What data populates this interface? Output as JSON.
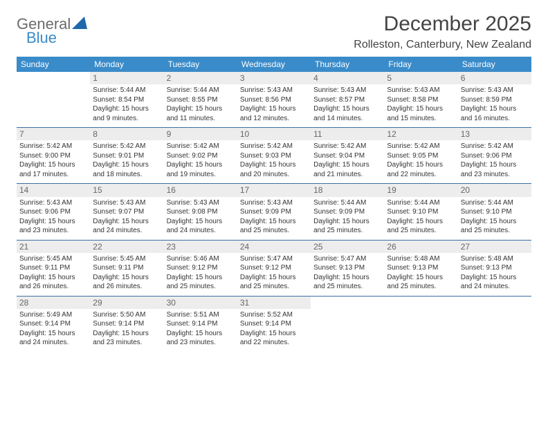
{
  "brand": {
    "general": "General",
    "blue": "Blue"
  },
  "header": {
    "month_title": "December 2025",
    "location": "Rolleston, Canterbury, New Zealand"
  },
  "style": {
    "header_bg": "#3a8bc9",
    "header_fg": "#ffffff",
    "row_border": "#3a6ea5",
    "daynum_bg": "#ededed",
    "body_bg": "#ffffff",
    "logo_grey": "#6b6b6b",
    "logo_blue": "#3a8bc9"
  },
  "weekdays": [
    "Sunday",
    "Monday",
    "Tuesday",
    "Wednesday",
    "Thursday",
    "Friday",
    "Saturday"
  ],
  "weeks": [
    [
      null,
      {
        "n": "1",
        "sr": "Sunrise: 5:44 AM",
        "ss": "Sunset: 8:54 PM",
        "d1": "Daylight: 15 hours",
        "d2": "and 9 minutes."
      },
      {
        "n": "2",
        "sr": "Sunrise: 5:44 AM",
        "ss": "Sunset: 8:55 PM",
        "d1": "Daylight: 15 hours",
        "d2": "and 11 minutes."
      },
      {
        "n": "3",
        "sr": "Sunrise: 5:43 AM",
        "ss": "Sunset: 8:56 PM",
        "d1": "Daylight: 15 hours",
        "d2": "and 12 minutes."
      },
      {
        "n": "4",
        "sr": "Sunrise: 5:43 AM",
        "ss": "Sunset: 8:57 PM",
        "d1": "Daylight: 15 hours",
        "d2": "and 14 minutes."
      },
      {
        "n": "5",
        "sr": "Sunrise: 5:43 AM",
        "ss": "Sunset: 8:58 PM",
        "d1": "Daylight: 15 hours",
        "d2": "and 15 minutes."
      },
      {
        "n": "6",
        "sr": "Sunrise: 5:43 AM",
        "ss": "Sunset: 8:59 PM",
        "d1": "Daylight: 15 hours",
        "d2": "and 16 minutes."
      }
    ],
    [
      {
        "n": "7",
        "sr": "Sunrise: 5:42 AM",
        "ss": "Sunset: 9:00 PM",
        "d1": "Daylight: 15 hours",
        "d2": "and 17 minutes."
      },
      {
        "n": "8",
        "sr": "Sunrise: 5:42 AM",
        "ss": "Sunset: 9:01 PM",
        "d1": "Daylight: 15 hours",
        "d2": "and 18 minutes."
      },
      {
        "n": "9",
        "sr": "Sunrise: 5:42 AM",
        "ss": "Sunset: 9:02 PM",
        "d1": "Daylight: 15 hours",
        "d2": "and 19 minutes."
      },
      {
        "n": "10",
        "sr": "Sunrise: 5:42 AM",
        "ss": "Sunset: 9:03 PM",
        "d1": "Daylight: 15 hours",
        "d2": "and 20 minutes."
      },
      {
        "n": "11",
        "sr": "Sunrise: 5:42 AM",
        "ss": "Sunset: 9:04 PM",
        "d1": "Daylight: 15 hours",
        "d2": "and 21 minutes."
      },
      {
        "n": "12",
        "sr": "Sunrise: 5:42 AM",
        "ss": "Sunset: 9:05 PM",
        "d1": "Daylight: 15 hours",
        "d2": "and 22 minutes."
      },
      {
        "n": "13",
        "sr": "Sunrise: 5:42 AM",
        "ss": "Sunset: 9:06 PM",
        "d1": "Daylight: 15 hours",
        "d2": "and 23 minutes."
      }
    ],
    [
      {
        "n": "14",
        "sr": "Sunrise: 5:43 AM",
        "ss": "Sunset: 9:06 PM",
        "d1": "Daylight: 15 hours",
        "d2": "and 23 minutes."
      },
      {
        "n": "15",
        "sr": "Sunrise: 5:43 AM",
        "ss": "Sunset: 9:07 PM",
        "d1": "Daylight: 15 hours",
        "d2": "and 24 minutes."
      },
      {
        "n": "16",
        "sr": "Sunrise: 5:43 AM",
        "ss": "Sunset: 9:08 PM",
        "d1": "Daylight: 15 hours",
        "d2": "and 24 minutes."
      },
      {
        "n": "17",
        "sr": "Sunrise: 5:43 AM",
        "ss": "Sunset: 9:09 PM",
        "d1": "Daylight: 15 hours",
        "d2": "and 25 minutes."
      },
      {
        "n": "18",
        "sr": "Sunrise: 5:44 AM",
        "ss": "Sunset: 9:09 PM",
        "d1": "Daylight: 15 hours",
        "d2": "and 25 minutes."
      },
      {
        "n": "19",
        "sr": "Sunrise: 5:44 AM",
        "ss": "Sunset: 9:10 PM",
        "d1": "Daylight: 15 hours",
        "d2": "and 25 minutes."
      },
      {
        "n": "20",
        "sr": "Sunrise: 5:44 AM",
        "ss": "Sunset: 9:10 PM",
        "d1": "Daylight: 15 hours",
        "d2": "and 25 minutes."
      }
    ],
    [
      {
        "n": "21",
        "sr": "Sunrise: 5:45 AM",
        "ss": "Sunset: 9:11 PM",
        "d1": "Daylight: 15 hours",
        "d2": "and 26 minutes."
      },
      {
        "n": "22",
        "sr": "Sunrise: 5:45 AM",
        "ss": "Sunset: 9:11 PM",
        "d1": "Daylight: 15 hours",
        "d2": "and 26 minutes."
      },
      {
        "n": "23",
        "sr": "Sunrise: 5:46 AM",
        "ss": "Sunset: 9:12 PM",
        "d1": "Daylight: 15 hours",
        "d2": "and 25 minutes."
      },
      {
        "n": "24",
        "sr": "Sunrise: 5:47 AM",
        "ss": "Sunset: 9:12 PM",
        "d1": "Daylight: 15 hours",
        "d2": "and 25 minutes."
      },
      {
        "n": "25",
        "sr": "Sunrise: 5:47 AM",
        "ss": "Sunset: 9:13 PM",
        "d1": "Daylight: 15 hours",
        "d2": "and 25 minutes."
      },
      {
        "n": "26",
        "sr": "Sunrise: 5:48 AM",
        "ss": "Sunset: 9:13 PM",
        "d1": "Daylight: 15 hours",
        "d2": "and 25 minutes."
      },
      {
        "n": "27",
        "sr": "Sunrise: 5:48 AM",
        "ss": "Sunset: 9:13 PM",
        "d1": "Daylight: 15 hours",
        "d2": "and 24 minutes."
      }
    ],
    [
      {
        "n": "28",
        "sr": "Sunrise: 5:49 AM",
        "ss": "Sunset: 9:14 PM",
        "d1": "Daylight: 15 hours",
        "d2": "and 24 minutes."
      },
      {
        "n": "29",
        "sr": "Sunrise: 5:50 AM",
        "ss": "Sunset: 9:14 PM",
        "d1": "Daylight: 15 hours",
        "d2": "and 23 minutes."
      },
      {
        "n": "30",
        "sr": "Sunrise: 5:51 AM",
        "ss": "Sunset: 9:14 PM",
        "d1": "Daylight: 15 hours",
        "d2": "and 23 minutes."
      },
      {
        "n": "31",
        "sr": "Sunrise: 5:52 AM",
        "ss": "Sunset: 9:14 PM",
        "d1": "Daylight: 15 hours",
        "d2": "and 22 minutes."
      },
      null,
      null,
      null
    ]
  ]
}
